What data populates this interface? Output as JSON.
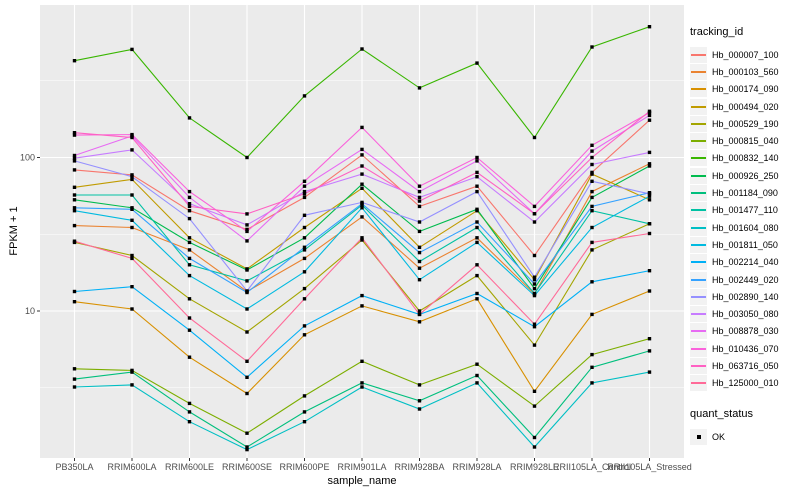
{
  "chart_data": {
    "type": "line",
    "title": "",
    "xlabel": "sample_name",
    "ylabel": "FPKM + 1",
    "y_scale": "log10",
    "y_tick_labels": [
      "100",
      "10"
    ],
    "y_tick_values": [
      100,
      10
    ],
    "y_minor_values": [
      316.2,
      31.62,
      3.162
    ],
    "ylim_approx": [
      1.1,
      990
    ],
    "grid": "on",
    "legend_position": "right",
    "legend_title": "tracking_id",
    "categories": [
      "PB350LA",
      "RRIM600LA",
      "RRIM600LE",
      "RRIM600SE",
      "RRIM600PE",
      "RRIM901LA",
      "RRIM928BA",
      "RRIM928LA",
      "RRIM928LE",
      "RRII105LA_Control",
      "RRII105LA_Stressed"
    ],
    "series": [
      {
        "name": "Hb_000007_100",
        "color": "#F8766D",
        "values": [
          83,
          77,
          45,
          34,
          55,
          104,
          48,
          65,
          23,
          80,
          175
        ]
      },
      {
        "name": "Hb_000103_560",
        "color": "#EA8331",
        "values": [
          36,
          35,
          25,
          13.4,
          22,
          41,
          19,
          30,
          12.9,
          60,
          91
        ]
      },
      {
        "name": "Hb_000174_090",
        "color": "#D89000",
        "values": [
          11.5,
          10.3,
          5,
          2.9,
          7,
          10.8,
          8.5,
          12,
          3,
          9.5,
          13.5
        ]
      },
      {
        "name": "Hb_000494_020",
        "color": "#C09B00",
        "values": [
          64,
          72,
          30,
          18.8,
          35,
          63,
          26,
          45,
          16,
          78,
          53
        ]
      },
      {
        "name": "Hb_000529_190",
        "color": "#A3A500",
        "values": [
          28,
          23,
          12,
          7.3,
          14,
          29,
          10,
          17,
          6,
          25,
          37
        ]
      },
      {
        "name": "Hb_000815_040",
        "color": "#7CAE00",
        "values": [
          4.2,
          4.1,
          2.5,
          1.6,
          2.8,
          4.7,
          3.3,
          4.5,
          2.4,
          5.2,
          6.6
        ]
      },
      {
        "name": "Hb_000832_140",
        "color": "#39B600",
        "values": [
          427,
          506,
          181,
          100,
          252,
          509,
          284,
          412,
          135,
          525,
          711
        ]
      },
      {
        "name": "Hb_000926_250",
        "color": "#00BB4E",
        "values": [
          53,
          47,
          28,
          18.5,
          30,
          67,
          33,
          46,
          14,
          55,
          88
        ]
      },
      {
        "name": "Hb_001184_090",
        "color": "#00BF7D",
        "values": [
          3.6,
          4,
          2.2,
          1.3,
          2.2,
          3.4,
          2.6,
          3.8,
          1.5,
          4.3,
          5.5
        ]
      },
      {
        "name": "Hb_001477_110",
        "color": "#00C1A3",
        "values": [
          57,
          57,
          20,
          15.7,
          25,
          49,
          21,
          35,
          13,
          45,
          37
        ]
      },
      {
        "name": "Hb_001604_080",
        "color": "#00BFC4",
        "values": [
          3.2,
          3.3,
          1.9,
          1.25,
          1.9,
          3.2,
          2.3,
          3.4,
          1.3,
          3.4,
          4
        ]
      },
      {
        "name": "Hb_001811_050",
        "color": "#00BAE0",
        "values": [
          45,
          39,
          17,
          10.3,
          18,
          47,
          16,
          28,
          12.6,
          35,
          56
        ]
      },
      {
        "name": "Hb_002214_040",
        "color": "#00B0F6",
        "values": [
          13.4,
          14.4,
          7.5,
          3.7,
          8,
          12.6,
          9.5,
          13,
          7.9,
          15.5,
          18.3
        ]
      },
      {
        "name": "Hb_002449_020",
        "color": "#35A2FF",
        "values": [
          47,
          46,
          22,
          13.2,
          26,
          50,
          24,
          38,
          15,
          48,
          59
        ]
      },
      {
        "name": "Hb_002890_140",
        "color": "#9590FF",
        "values": [
          95,
          75,
          40,
          13.5,
          42,
          51,
          38,
          60,
          16.6,
          70,
          58
        ]
      },
      {
        "name": "Hb_003050_080",
        "color": "#C77CFF",
        "values": [
          99,
          112,
          50,
          36.4,
          60,
          78,
          55,
          75,
          38,
          90,
          108
        ]
      },
      {
        "name": "Hb_008878_030",
        "color": "#E76BF3",
        "values": [
          103,
          138,
          55,
          28.6,
          65,
          113,
          60,
          95,
          43,
          110,
          188
        ]
      },
      {
        "name": "Hb_010436_070",
        "color": "#FA62DB",
        "values": [
          140,
          141,
          60,
          33,
          70,
          157,
          65,
          100,
          48,
          120,
          196
        ]
      },
      {
        "name": "Hb_063716_050",
        "color": "#FF61C3",
        "values": [
          145,
          135,
          48,
          42.9,
          58,
          88,
          52,
          80,
          43,
          100,
          200
        ]
      },
      {
        "name": "Hb_125000_010",
        "color": "#FF6A98",
        "values": [
          28.5,
          22,
          9,
          4.7,
          12,
          30,
          9.5,
          20,
          8.2,
          28,
          32
        ]
      }
    ],
    "quant_legend": {
      "title": "quant_status",
      "items": [
        {
          "label": "OK",
          "shape": "square",
          "color": "#000000"
        }
      ]
    },
    "point_shape": "square",
    "point_color": "#000000",
    "panel_bg": "#EBEBEB",
    "grid_color": "#FFFFFF",
    "axis_text_color": "#4D4D4D"
  }
}
